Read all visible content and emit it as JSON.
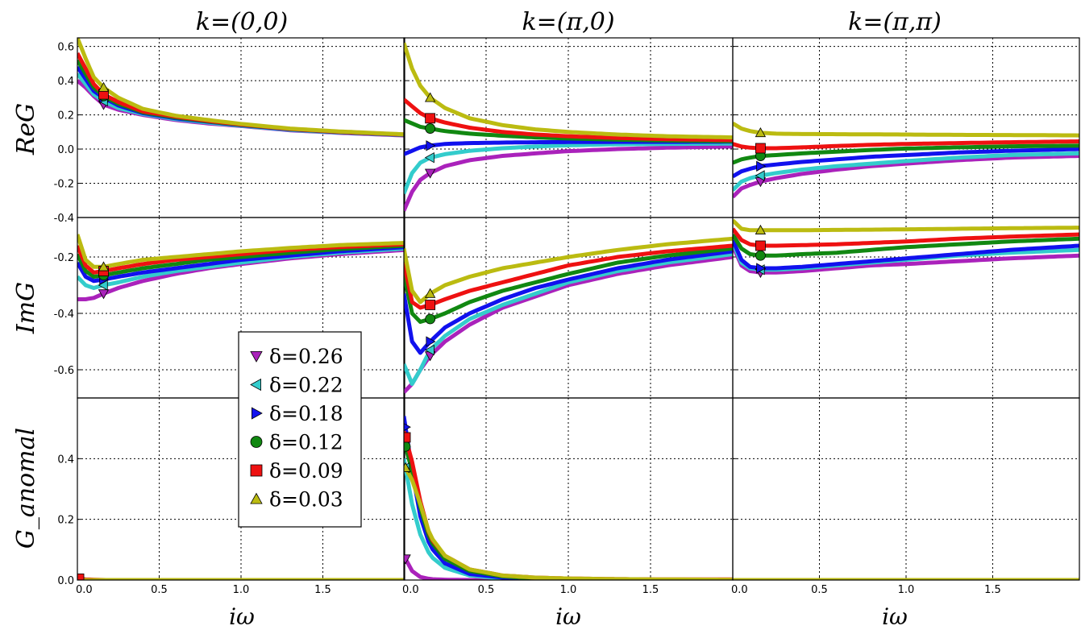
{
  "chart_data": {
    "type": "line",
    "col_titles": [
      "k=(0,0)",
      "k=(π,0)",
      "k=(π,π)"
    ],
    "row_labels": [
      "ReG",
      "ImG",
      "G_anomal"
    ],
    "xlabel": "iω",
    "xlim": [
      0.0,
      2.0
    ],
    "x_ticks": [
      "0.0",
      "0.5",
      "1.0",
      "1.5"
    ],
    "rows": [
      {
        "ylim": [
          -0.4,
          0.65
        ],
        "y_ticks": [
          0.6,
          0.4,
          0.2,
          0.0,
          -0.2,
          -0.4
        ],
        "y_tick_labels": [
          "0.6",
          "0.4",
          "0.2",
          "0.0",
          "-0.2",
          "-0.4"
        ]
      },
      {
        "ylim": [
          -0.7,
          -0.06
        ],
        "y_ticks": [
          -0.2,
          -0.4,
          -0.6
        ],
        "y_tick_labels": [
          "-0.2",
          "-0.4",
          "-0.6"
        ]
      },
      {
        "ylim": [
          0.0,
          0.6
        ],
        "y_ticks": [
          0.4,
          0.2,
          0.0
        ],
        "y_tick_labels": [
          "0.4",
          "0.2",
          "0.0"
        ]
      }
    ],
    "legend": {
      "placement": "center-left",
      "entries": [
        {
          "label": "δ=0.26",
          "marker": "triangle-down",
          "color": "#aa22bb"
        },
        {
          "label": "δ=0.22",
          "marker": "triangle-left",
          "color": "#33cccc"
        },
        {
          "label": "δ=0.18",
          "marker": "triangle-right",
          "color": "#1111ee"
        },
        {
          "label": "δ=0.12",
          "marker": "circle",
          "color": "#118811"
        },
        {
          "label": "δ=0.09",
          "marker": "square",
          "color": "#ee1111"
        },
        {
          "label": "δ=0.03",
          "marker": "triangle-up",
          "color": "#bbbb11"
        }
      ]
    },
    "marker_x": 0.16,
    "x_sample": [
      0.0,
      0.05,
      0.1,
      0.16,
      0.25,
      0.4,
      0.6,
      0.8,
      1.0,
      1.3,
      1.6,
      2.0
    ],
    "panels": [
      {
        "row": 0,
        "col": 0,
        "series": [
          [
            0.4,
            0.36,
            0.31,
            0.26,
            0.23,
            0.2,
            0.17,
            0.15,
            0.135,
            0.11,
            0.095,
            0.08
          ],
          [
            0.44,
            0.38,
            0.32,
            0.28,
            0.24,
            0.205,
            0.175,
            0.155,
            0.137,
            0.112,
            0.097,
            0.082
          ],
          [
            0.48,
            0.41,
            0.34,
            0.3,
            0.255,
            0.21,
            0.18,
            0.16,
            0.14,
            0.115,
            0.099,
            0.083
          ],
          [
            0.52,
            0.44,
            0.36,
            0.31,
            0.265,
            0.215,
            0.185,
            0.162,
            0.142,
            0.117,
            0.1,
            0.084
          ],
          [
            0.56,
            0.47,
            0.38,
            0.32,
            0.275,
            0.22,
            0.19,
            0.165,
            0.144,
            0.118,
            0.101,
            0.085
          ],
          [
            0.65,
            0.53,
            0.42,
            0.36,
            0.3,
            0.235,
            0.195,
            0.17,
            0.147,
            0.12,
            0.103,
            0.086
          ]
        ]
      },
      {
        "row": 0,
        "col": 1,
        "series": [
          [
            -0.36,
            -0.25,
            -0.18,
            -0.14,
            -0.1,
            -0.065,
            -0.04,
            -0.025,
            -0.012,
            0.0,
            0.008,
            0.015
          ],
          [
            -0.26,
            -0.14,
            -0.08,
            -0.05,
            -0.03,
            -0.01,
            0.005,
            0.015,
            0.022,
            0.028,
            0.03,
            0.032
          ],
          [
            -0.03,
            -0.01,
            0.01,
            0.02,
            0.03,
            0.035,
            0.038,
            0.04,
            0.041,
            0.042,
            0.042,
            0.043
          ],
          [
            0.17,
            0.15,
            0.13,
            0.12,
            0.105,
            0.09,
            0.078,
            0.068,
            0.062,
            0.055,
            0.05,
            0.046
          ],
          [
            0.29,
            0.25,
            0.21,
            0.18,
            0.155,
            0.125,
            0.1,
            0.085,
            0.075,
            0.065,
            0.058,
            0.052
          ],
          [
            0.62,
            0.47,
            0.37,
            0.3,
            0.24,
            0.18,
            0.14,
            0.115,
            0.1,
            0.085,
            0.075,
            0.068
          ]
        ]
      },
      {
        "row": 0,
        "col": 2,
        "series": [
          [
            -0.28,
            -0.23,
            -0.21,
            -0.19,
            -0.17,
            -0.145,
            -0.12,
            -0.1,
            -0.085,
            -0.065,
            -0.05,
            -0.04
          ],
          [
            -0.24,
            -0.19,
            -0.17,
            -0.155,
            -0.14,
            -0.12,
            -0.1,
            -0.085,
            -0.07,
            -0.05,
            -0.035,
            -0.025
          ],
          [
            -0.16,
            -0.13,
            -0.115,
            -0.1,
            -0.09,
            -0.075,
            -0.06,
            -0.045,
            -0.035,
            -0.02,
            -0.01,
            0.0
          ],
          [
            -0.08,
            -0.06,
            -0.05,
            -0.04,
            -0.035,
            -0.025,
            -0.015,
            -0.005,
            0.003,
            0.01,
            0.016,
            0.02
          ],
          [
            0.03,
            0.015,
            0.008,
            0.005,
            0.005,
            0.01,
            0.018,
            0.025,
            0.03,
            0.035,
            0.04,
            0.045
          ],
          [
            0.15,
            0.12,
            0.105,
            0.095,
            0.09,
            0.088,
            0.087,
            0.086,
            0.085,
            0.083,
            0.082,
            0.08
          ]
        ]
      },
      {
        "row": 1,
        "col": 0,
        "series": [
          [
            -0.35,
            -0.35,
            -0.345,
            -0.33,
            -0.31,
            -0.285,
            -0.26,
            -0.24,
            -0.225,
            -0.205,
            -0.19,
            -0.175
          ],
          [
            -0.27,
            -0.3,
            -0.31,
            -0.3,
            -0.29,
            -0.27,
            -0.25,
            -0.235,
            -0.22,
            -0.2,
            -0.185,
            -0.17
          ],
          [
            -0.22,
            -0.27,
            -0.285,
            -0.28,
            -0.27,
            -0.255,
            -0.24,
            -0.225,
            -0.21,
            -0.195,
            -0.18,
            -0.165
          ],
          [
            -0.19,
            -0.25,
            -0.27,
            -0.265,
            -0.255,
            -0.24,
            -0.225,
            -0.21,
            -0.2,
            -0.185,
            -0.172,
            -0.16
          ],
          [
            -0.16,
            -0.23,
            -0.255,
            -0.25,
            -0.24,
            -0.225,
            -0.21,
            -0.2,
            -0.19,
            -0.175,
            -0.165,
            -0.155
          ],
          [
            -0.12,
            -0.21,
            -0.235,
            -0.235,
            -0.225,
            -0.21,
            -0.2,
            -0.19,
            -0.18,
            -0.168,
            -0.158,
            -0.15
          ]
        ]
      },
      {
        "row": 1,
        "col": 1,
        "series": [
          [
            -0.68,
            -0.65,
            -0.6,
            -0.55,
            -0.5,
            -0.44,
            -0.38,
            -0.34,
            -0.3,
            -0.26,
            -0.23,
            -0.2
          ],
          [
            -0.58,
            -0.65,
            -0.6,
            -0.53,
            -0.48,
            -0.42,
            -0.37,
            -0.33,
            -0.29,
            -0.25,
            -0.22,
            -0.19
          ],
          [
            -0.33,
            -0.5,
            -0.54,
            -0.5,
            -0.45,
            -0.4,
            -0.35,
            -0.31,
            -0.28,
            -0.24,
            -0.21,
            -0.18
          ],
          [
            -0.26,
            -0.4,
            -0.43,
            -0.42,
            -0.4,
            -0.36,
            -0.32,
            -0.29,
            -0.26,
            -0.22,
            -0.195,
            -0.17
          ],
          [
            -0.22,
            -0.36,
            -0.38,
            -0.37,
            -0.35,
            -0.32,
            -0.29,
            -0.26,
            -0.23,
            -0.2,
            -0.18,
            -0.16
          ],
          [
            -0.17,
            -0.32,
            -0.36,
            -0.33,
            -0.3,
            -0.27,
            -0.24,
            -0.22,
            -0.2,
            -0.175,
            -0.155,
            -0.135
          ]
        ]
      },
      {
        "row": 1,
        "col": 2,
        "series": [
          [
            -0.16,
            -0.23,
            -0.25,
            -0.255,
            -0.255,
            -0.25,
            -0.24,
            -0.23,
            -0.225,
            -0.215,
            -0.205,
            -0.195
          ],
          [
            -0.15,
            -0.22,
            -0.24,
            -0.245,
            -0.245,
            -0.24,
            -0.23,
            -0.22,
            -0.21,
            -0.195,
            -0.185,
            -0.175
          ],
          [
            -0.14,
            -0.21,
            -0.235,
            -0.24,
            -0.24,
            -0.235,
            -0.225,
            -0.215,
            -0.205,
            -0.19,
            -0.175,
            -0.16
          ],
          [
            -0.12,
            -0.17,
            -0.19,
            -0.195,
            -0.195,
            -0.19,
            -0.185,
            -0.175,
            -0.165,
            -0.155,
            -0.145,
            -0.135
          ],
          [
            -0.1,
            -0.14,
            -0.155,
            -0.16,
            -0.16,
            -0.158,
            -0.155,
            -0.15,
            -0.145,
            -0.135,
            -0.128,
            -0.12
          ],
          [
            -0.07,
            -0.1,
            -0.105,
            -0.105,
            -0.105,
            -0.105,
            -0.104,
            -0.103,
            -0.102,
            -0.1,
            -0.098,
            -0.096
          ]
        ]
      },
      {
        "row": 2,
        "col": 0,
        "series": [
          [
            0,
            0,
            0,
            0,
            0,
            0,
            0,
            0,
            0,
            0,
            0,
            0
          ],
          [
            0,
            0,
            0,
            0,
            0,
            0,
            0,
            0,
            0,
            0,
            0,
            0
          ],
          [
            0,
            0,
            0,
            0,
            0,
            0,
            0,
            0,
            0,
            0,
            0,
            0
          ],
          [
            0,
            0,
            0,
            0,
            0,
            0,
            0,
            0,
            0,
            0,
            0,
            0
          ],
          [
            0.005,
            0.002,
            0.001,
            0,
            0,
            0,
            0,
            0,
            0,
            0,
            0,
            0
          ],
          [
            0,
            0,
            0,
            0,
            0,
            0,
            0,
            0,
            0,
            0,
            0,
            0
          ]
        ]
      },
      {
        "row": 2,
        "col": 1,
        "series": [
          [
            0.08,
            0.03,
            0.01,
            0.003,
            0.001,
            0,
            0,
            0,
            0,
            0,
            0,
            0
          ],
          [
            0.4,
            0.25,
            0.15,
            0.08,
            0.04,
            0.015,
            0.005,
            0.002,
            0.001,
            0,
            0,
            0
          ],
          [
            0.54,
            0.36,
            0.21,
            0.11,
            0.055,
            0.02,
            0.008,
            0.003,
            0.001,
            0,
            0,
            0
          ],
          [
            0.46,
            0.36,
            0.24,
            0.13,
            0.07,
            0.03,
            0.012,
            0.005,
            0.002,
            0.001,
            0,
            0
          ],
          [
            0.49,
            0.39,
            0.26,
            0.14,
            0.08,
            0.035,
            0.015,
            0.008,
            0.005,
            0.003,
            0.002,
            0.002
          ],
          [
            0.38,
            0.33,
            0.25,
            0.145,
            0.08,
            0.035,
            0.015,
            0.008,
            0.005,
            0.003,
            0.002,
            0.001
          ]
        ]
      },
      {
        "row": 2,
        "col": 2,
        "series": [
          [
            0,
            0,
            0,
            0,
            0,
            0,
            0,
            0,
            0,
            0,
            0,
            0
          ],
          [
            0,
            0,
            0,
            0,
            0,
            0,
            0,
            0,
            0,
            0,
            0,
            0
          ],
          [
            0,
            0,
            0,
            0,
            0,
            0,
            0,
            0,
            0,
            0,
            0,
            0
          ],
          [
            0,
            0,
            0,
            0,
            0,
            0,
            0,
            0,
            0,
            0,
            0,
            0
          ],
          [
            0,
            0,
            0,
            0,
            0,
            0,
            0,
            0,
            0,
            0,
            0,
            0
          ],
          [
            0,
            0,
            0,
            0,
            0,
            0,
            0,
            0,
            0,
            0,
            0,
            0
          ]
        ]
      }
    ]
  }
}
